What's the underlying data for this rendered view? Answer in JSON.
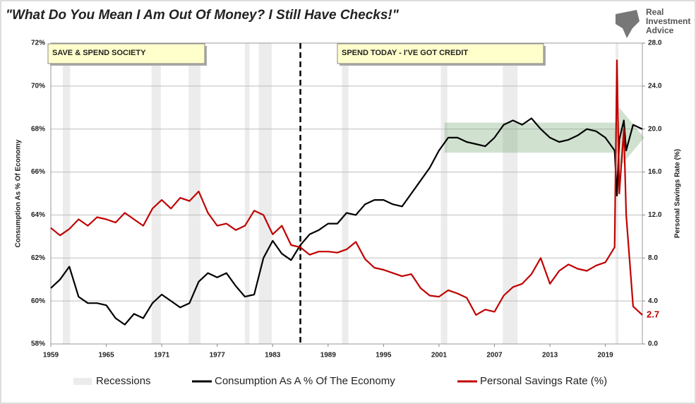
{
  "chart_data": {
    "type": "line",
    "title": "\"What Do You Mean I Am Out Of Money?  I Still Have Checks!\"",
    "logo": [
      "Real",
      "Investment",
      "Advice"
    ],
    "ylabel": "Consumption As % Of Economy",
    "y2label": "Personal Savings Rate (%)",
    "annotations": [
      "SAVE & SPEND SOCIETY",
      "SPEND TODAY - I'VE GOT CREDIT"
    ],
    "divider_x": 1986,
    "xlim": [
      1959,
      2023
    ],
    "xticks": [
      1959,
      1965,
      1971,
      1977,
      1983,
      1989,
      1995,
      2001,
      2007,
      2013,
      2019
    ],
    "ylim": [
      58,
      72
    ],
    "yticks": [
      {
        "value": 58,
        "label": "58%"
      },
      {
        "value": 60,
        "label": "60%"
      },
      {
        "value": 62,
        "label": "62%"
      },
      {
        "value": 64,
        "label": "64%"
      },
      {
        "value": 66,
        "label": "66%"
      },
      {
        "value": 68,
        "label": "68%"
      },
      {
        "value": 70,
        "label": "70%"
      },
      {
        "value": 72,
        "label": "72%"
      }
    ],
    "y2lim": [
      0,
      28
    ],
    "y2ticks": [
      {
        "value": 0,
        "label": "0.0"
      },
      {
        "value": 4,
        "label": "4.0"
      },
      {
        "value": 8,
        "label": "8.0"
      },
      {
        "value": 12,
        "label": "12.0"
      },
      {
        "value": 16,
        "label": "16.0"
      },
      {
        "value": 20,
        "label": "20.0"
      },
      {
        "value": 24,
        "label": "24.0"
      },
      {
        "value": 28,
        "label": "28.0"
      }
    ],
    "grid": true,
    "shading": {
      "name": "Recessions",
      "color": "#ececec",
      "periods": [
        [
          1960.3,
          1961.1
        ],
        [
          1969.9,
          1970.9
        ],
        [
          1973.9,
          1975.2
        ],
        [
          1980.0,
          1980.5
        ],
        [
          1981.5,
          1982.9
        ],
        [
          1990.5,
          1991.2
        ],
        [
          2001.2,
          2001.9
        ],
        [
          2007.9,
          2009.5
        ],
        [
          2020.1,
          2020.4
        ]
      ]
    },
    "x": [
      1959,
      1960,
      1961,
      1962,
      1963,
      1964,
      1965,
      1966,
      1967,
      1968,
      1969,
      1970,
      1971,
      1972,
      1973,
      1974,
      1975,
      1976,
      1977,
      1978,
      1979,
      1980,
      1981,
      1982,
      1983,
      1984,
      1985,
      1986,
      1987,
      1988,
      1989,
      1990,
      1991,
      1992,
      1993,
      1994,
      1995,
      1996,
      1997,
      1998,
      1999,
      2000,
      2001,
      2002,
      2003,
      2004,
      2005,
      2006,
      2007,
      2008,
      2009,
      2010,
      2011,
      2012,
      2013,
      2014,
      2015,
      2016,
      2017,
      2018,
      2019,
      2020,
      2020.25,
      2020.5,
      2021,
      2021.25,
      2022,
      2023
    ],
    "series": [
      {
        "name": "Consumption As A % Of The Economy",
        "color": "#000000",
        "values": [
          60.6,
          61.0,
          61.6,
          60.2,
          59.9,
          59.9,
          59.8,
          59.2,
          58.9,
          59.4,
          59.2,
          59.9,
          60.3,
          60.0,
          59.7,
          59.9,
          60.9,
          61.3,
          61.1,
          61.3,
          60.7,
          60.2,
          60.3,
          62.0,
          62.8,
          62.2,
          61.9,
          62.6,
          63.1,
          63.3,
          63.6,
          63.6,
          64.1,
          64.0,
          64.5,
          64.7,
          64.7,
          64.5,
          64.4,
          65.0,
          65.6,
          66.2,
          67.0,
          67.6,
          67.6,
          67.4,
          67.3,
          67.2,
          67.6,
          68.2,
          68.4,
          68.2,
          68.5,
          68.0,
          67.6,
          67.4,
          67.5,
          67.7,
          68.0,
          67.9,
          67.6,
          67.0,
          64.9,
          67.5,
          68.4,
          67.0,
          68.2,
          68.0
        ]
      },
      {
        "name": "Personal Savings Rate (%)",
        "color": "#c00000",
        "axis": "y2",
        "values": [
          10.8,
          10.1,
          10.7,
          11.6,
          11.0,
          11.8,
          11.6,
          11.3,
          12.2,
          11.6,
          11.0,
          12.6,
          13.4,
          12.6,
          13.6,
          13.3,
          14.2,
          12.2,
          11.0,
          11.2,
          10.6,
          11.0,
          12.4,
          12.0,
          10.2,
          11.0,
          9.2,
          9.0,
          8.3,
          8.6,
          8.6,
          8.5,
          8.8,
          9.5,
          7.9,
          7.1,
          6.9,
          6.6,
          6.3,
          6.5,
          5.2,
          4.5,
          4.4,
          5.0,
          4.7,
          4.3,
          2.7,
          3.2,
          3.0,
          4.5,
          5.3,
          5.6,
          6.5,
          8.0,
          5.6,
          6.8,
          7.4,
          7.0,
          6.8,
          7.3,
          7.6,
          9.0,
          26.4,
          14.0,
          20.0,
          12.0,
          3.5,
          2.7
        ]
      }
    ]
  }
}
